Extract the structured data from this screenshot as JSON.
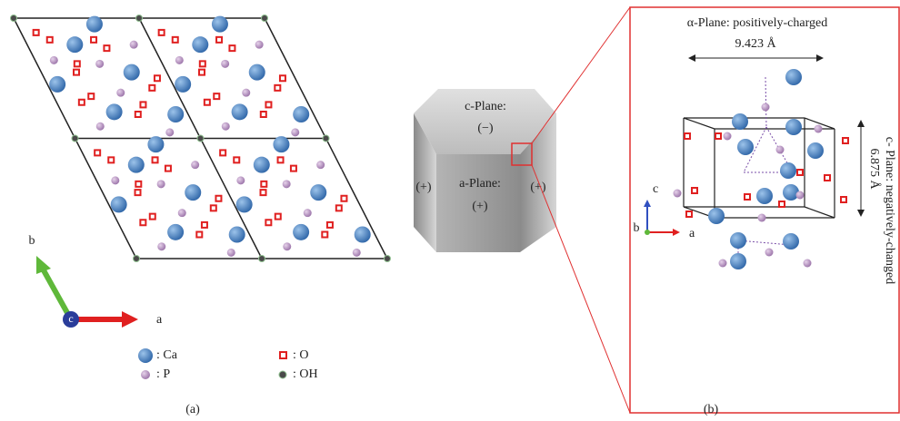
{
  "panel_a": {
    "axes": {
      "b": "b",
      "c": "c",
      "a": "a"
    },
    "legend": [
      {
        "label": ": Ca"
      },
      {
        "label": ": P"
      },
      {
        "label": ": O"
      },
      {
        "label": ": OH"
      }
    ],
    "caption": "(a)"
  },
  "panel_b": {
    "prism": {
      "top_label": "c-Plane:",
      "top_sign": "(−)",
      "front_label": "a-Plane:",
      "front_sign": "(+)",
      "left_sign": "(+)",
      "right_sign": "(+)"
    },
    "inset": {
      "top_label": "α-Plane: positively-charged",
      "width_label": "9.423 Å",
      "height_label": "6.875 Å",
      "side_label": "c- Plane: negatively-changed",
      "axes": {
        "c": "c",
        "b": "b",
        "a": "a"
      }
    },
    "caption": "(b)"
  }
}
